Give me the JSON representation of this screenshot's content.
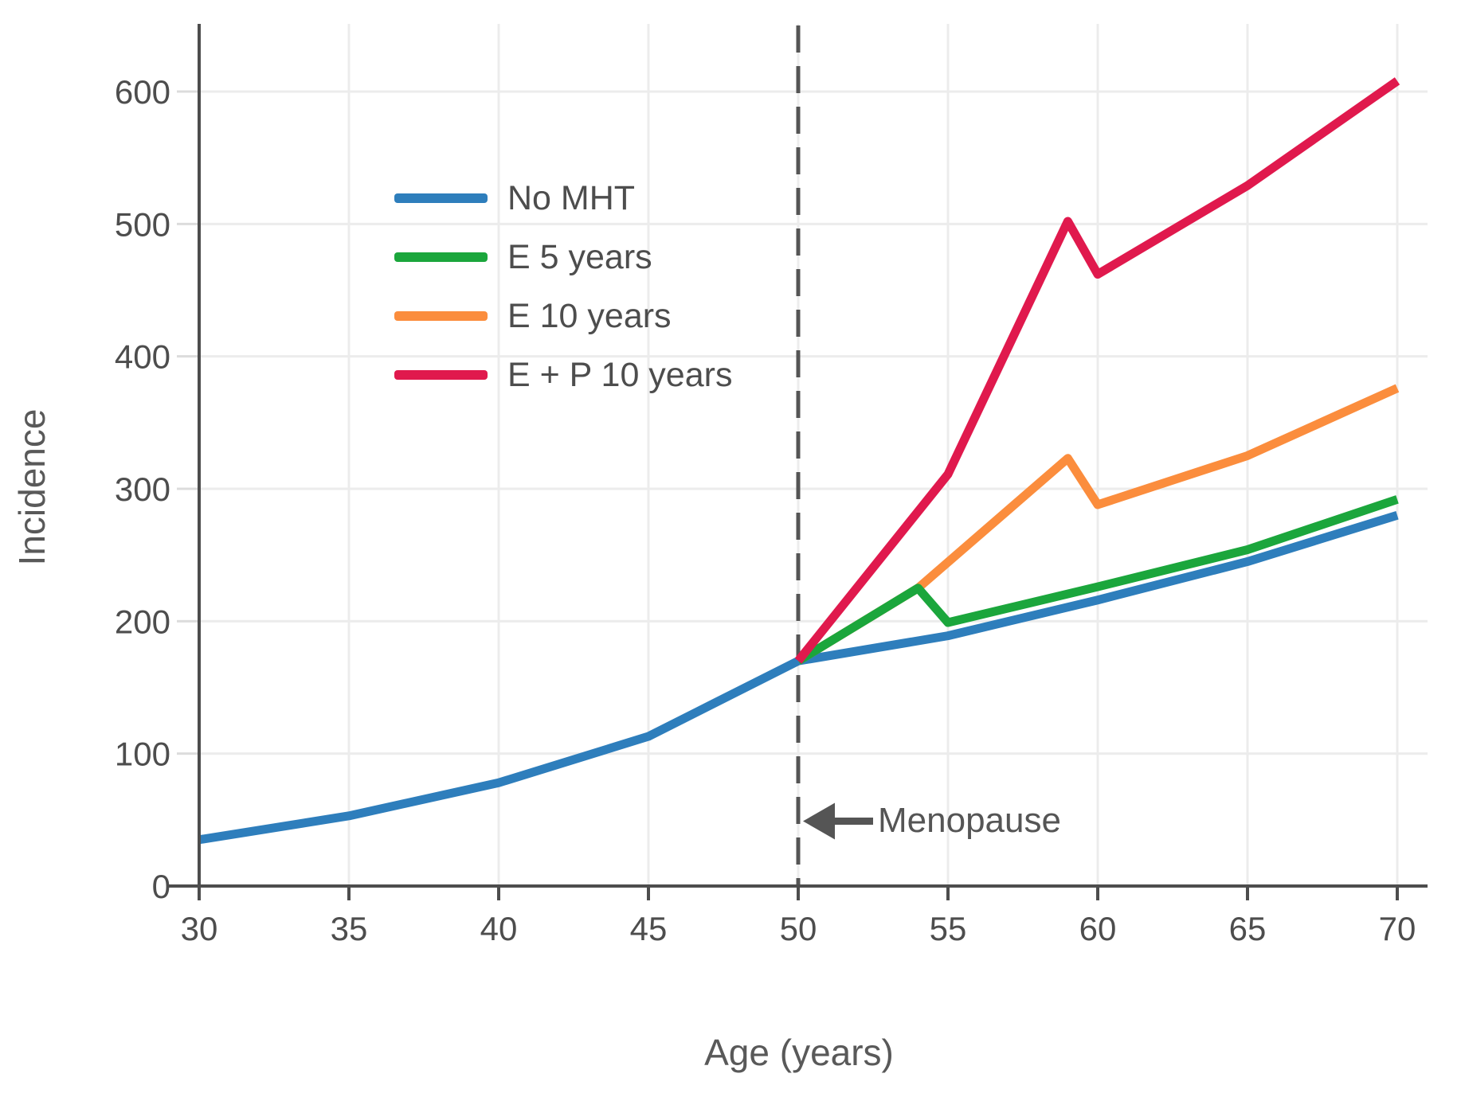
{
  "chart_data": {
    "type": "line",
    "title": "",
    "xlabel": "Age (years)",
    "ylabel": "Incidence",
    "x_ticks": [
      30,
      35,
      40,
      45,
      50,
      55,
      60,
      65,
      70
    ],
    "y_ticks": [
      0,
      100,
      200,
      300,
      400,
      500,
      600
    ],
    "x_range": [
      30,
      70
    ],
    "y_range": [
      0,
      600
    ],
    "grid": true,
    "legend_position": "upper left inside plot",
    "series": [
      {
        "name": "No MHT",
        "color": "#2E7EBC",
        "points": [
          [
            30,
            35
          ],
          [
            35,
            53
          ],
          [
            40,
            78
          ],
          [
            45,
            113
          ],
          [
            50,
            170
          ],
          [
            55,
            189
          ],
          [
            60,
            216
          ],
          [
            65,
            245
          ],
          [
            70,
            280
          ]
        ]
      },
      {
        "name": "E 5 years",
        "color": "#1BA63C",
        "points": [
          [
            50,
            170
          ],
          [
            54,
            225
          ],
          [
            55,
            199
          ],
          [
            60,
            226
          ],
          [
            65,
            254
          ],
          [
            70,
            292
          ]
        ]
      },
      {
        "name": "E 10 years",
        "color": "#FB8D3D",
        "points": [
          [
            50,
            170
          ],
          [
            54,
            225
          ],
          [
            59,
            323
          ],
          [
            60,
            288
          ],
          [
            65,
            325
          ],
          [
            70,
            376
          ]
        ]
      },
      {
        "name": "E + P 10 years",
        "color": "#E0194D",
        "points": [
          [
            50,
            170
          ],
          [
            55,
            311
          ],
          [
            59,
            502
          ],
          [
            60,
            462
          ],
          [
            65,
            529
          ],
          [
            70,
            608
          ]
        ]
      }
    ],
    "menopause_line": {
      "x": 50,
      "style": "dashed",
      "color": "#555555"
    },
    "annotation": {
      "text": "Menopause",
      "x": 50,
      "y": 49,
      "arrow_direction": "left",
      "color": "#555555"
    }
  },
  "colors": {
    "grid": "#ececec",
    "y_tick": "#dcdcdc",
    "spine": "#4d4d4d",
    "tick_text": "#4d4d4d"
  }
}
